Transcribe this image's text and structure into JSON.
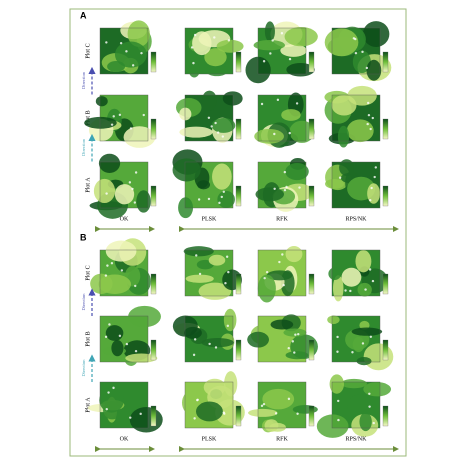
{
  "panels": [
    {
      "label": "A",
      "rows": [
        "Plot C",
        "Plot B",
        "Plot A"
      ],
      "directions": [
        "Direction",
        "Direction"
      ],
      "columns": [
        "OK",
        "PLSK",
        "RFK",
        "RPS/NK"
      ]
    },
    {
      "label": "B",
      "rows": [
        "Plot C",
        "Plot B",
        "Plot A"
      ],
      "directions": [
        "Direction",
        "Direction"
      ],
      "columns": [
        "OK",
        "PLSK",
        "RFK",
        "RPS/NK"
      ]
    }
  ]
}
